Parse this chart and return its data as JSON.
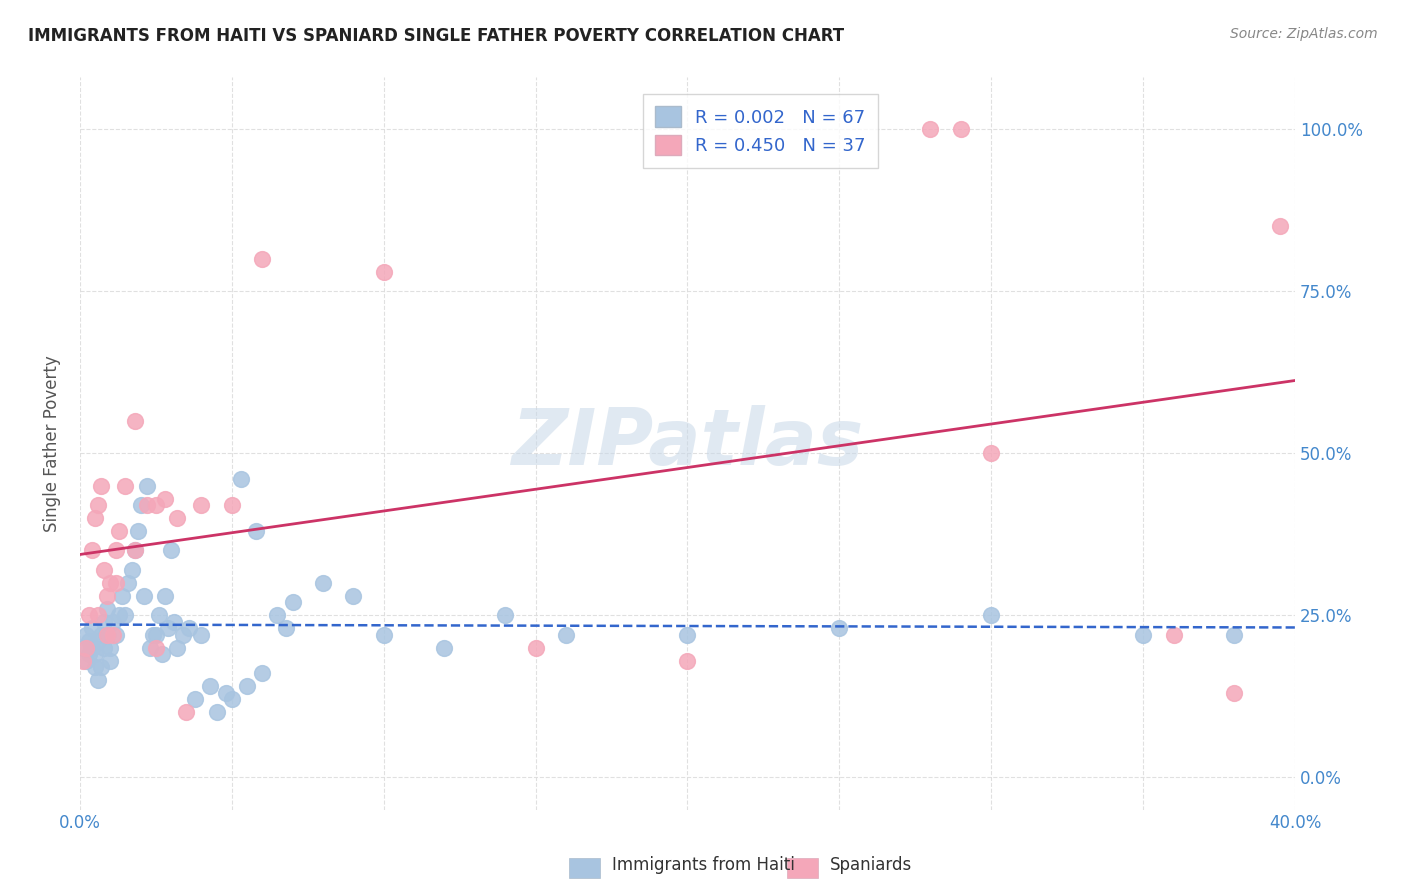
{
  "title": "IMMIGRANTS FROM HAITI VS SPANIARD SINGLE FATHER POVERTY CORRELATION CHART",
  "source": "Source: ZipAtlas.com",
  "ylabel": "Single Father Poverty",
  "xmin": 0.0,
  "xmax": 0.4,
  "ymin": -0.05,
  "ymax": 1.08,
  "legend_label1": "Immigrants from Haiti",
  "legend_label2": "Spaniards",
  "haiti_color": "#a8c4e0",
  "spaniard_color": "#f4a7b9",
  "haiti_line_color": "#3366cc",
  "spaniard_line_color": "#cc3366",
  "watermark_text": "ZIPatlas",
  "haiti_x": [
    0.001,
    0.002,
    0.002,
    0.003,
    0.003,
    0.004,
    0.004,
    0.005,
    0.005,
    0.006,
    0.006,
    0.007,
    0.007,
    0.008,
    0.008,
    0.009,
    0.009,
    0.01,
    0.01,
    0.011,
    0.012,
    0.013,
    0.014,
    0.015,
    0.016,
    0.017,
    0.018,
    0.019,
    0.02,
    0.022,
    0.024,
    0.026,
    0.028,
    0.03,
    0.032,
    0.034,
    0.036,
    0.04,
    0.045,
    0.05,
    0.055,
    0.06,
    0.065,
    0.07,
    0.08,
    0.09,
    0.1,
    0.12,
    0.14,
    0.16,
    0.021,
    0.023,
    0.025,
    0.027,
    0.029,
    0.031,
    0.038,
    0.043,
    0.048,
    0.053,
    0.058,
    0.068,
    0.2,
    0.25,
    0.3,
    0.35,
    0.38
  ],
  "haiti_y": [
    0.2,
    0.18,
    0.22,
    0.19,
    0.21,
    0.23,
    0.2,
    0.17,
    0.19,
    0.21,
    0.15,
    0.17,
    0.22,
    0.2,
    0.24,
    0.22,
    0.26,
    0.2,
    0.18,
    0.24,
    0.22,
    0.25,
    0.28,
    0.25,
    0.3,
    0.32,
    0.35,
    0.38,
    0.42,
    0.45,
    0.22,
    0.25,
    0.28,
    0.35,
    0.2,
    0.22,
    0.23,
    0.22,
    0.1,
    0.12,
    0.14,
    0.16,
    0.25,
    0.27,
    0.3,
    0.28,
    0.22,
    0.2,
    0.25,
    0.22,
    0.28,
    0.2,
    0.22,
    0.19,
    0.23,
    0.24,
    0.12,
    0.14,
    0.13,
    0.46,
    0.38,
    0.23,
    0.22,
    0.23,
    0.25,
    0.22,
    0.22
  ],
  "spaniard_x": [
    0.001,
    0.002,
    0.003,
    0.004,
    0.005,
    0.006,
    0.007,
    0.008,
    0.009,
    0.01,
    0.011,
    0.012,
    0.013,
    0.015,
    0.018,
    0.022,
    0.025,
    0.028,
    0.032,
    0.04,
    0.05,
    0.06,
    0.1,
    0.006,
    0.009,
    0.012,
    0.018,
    0.025,
    0.035,
    0.28,
    0.29,
    0.3,
    0.36,
    0.38,
    0.395,
    0.15,
    0.2
  ],
  "spaniard_y": [
    0.18,
    0.2,
    0.25,
    0.35,
    0.4,
    0.42,
    0.45,
    0.32,
    0.28,
    0.3,
    0.22,
    0.35,
    0.38,
    0.45,
    0.55,
    0.42,
    0.42,
    0.43,
    0.4,
    0.42,
    0.42,
    0.8,
    0.78,
    0.25,
    0.22,
    0.3,
    0.35,
    0.2,
    0.1,
    1.0,
    1.0,
    0.5,
    0.22,
    0.13,
    0.85,
    0.2,
    0.18
  ],
  "grid_color": "#dddddd",
  "background_color": "#ffffff",
  "yticks": [
    0.0,
    0.25,
    0.5,
    0.75,
    1.0
  ],
  "xticks": [
    0.0,
    0.05,
    0.1,
    0.15,
    0.2,
    0.25,
    0.3,
    0.35,
    0.4
  ]
}
